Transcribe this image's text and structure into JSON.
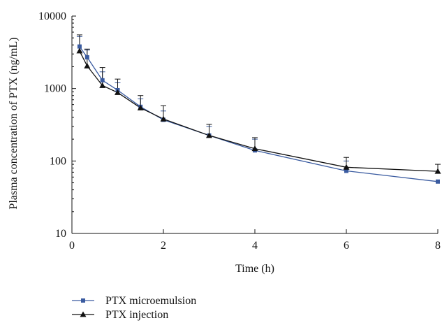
{
  "chart_data": {
    "type": "line",
    "xlabel": "Time (h)",
    "ylabel": "Plasma concentration of PTX (ng/mL)",
    "xlim": [
      0,
      8
    ],
    "ylim": [
      10,
      10000
    ],
    "y_scale": "log",
    "x_ticks": [
      "0",
      "2",
      "4",
      "6",
      "8"
    ],
    "y_ticks": [
      "10",
      "100",
      "1000",
      "10000"
    ],
    "grid": false,
    "legend_position": "bottom-left",
    "error_bars": "upper",
    "series": [
      {
        "name": "PTX microemulsion",
        "color": "#3a5ba0",
        "marker": "square",
        "x": [
          0.167,
          0.333,
          0.667,
          1,
          1.5,
          2,
          3,
          4,
          6,
          8
        ],
        "y": [
          3800,
          2700,
          1300,
          950,
          560,
          370,
          225,
          140,
          73,
          52
        ],
        "error_upper": [
          5200,
          3400,
          1700,
          1200,
          720,
          490,
          300,
          200,
          100,
          null
        ]
      },
      {
        "name": "PTX injection",
        "color": "#111111",
        "marker": "triangle",
        "x": [
          0.167,
          0.333,
          0.667,
          1,
          1.5,
          2,
          3,
          4,
          6,
          8
        ],
        "y": [
          3300,
          2050,
          1100,
          880,
          540,
          380,
          225,
          148,
          82,
          72
        ],
        "error_upper": [
          5500,
          3500,
          1950,
          1350,
          800,
          580,
          320,
          210,
          112,
          90
        ]
      }
    ]
  }
}
